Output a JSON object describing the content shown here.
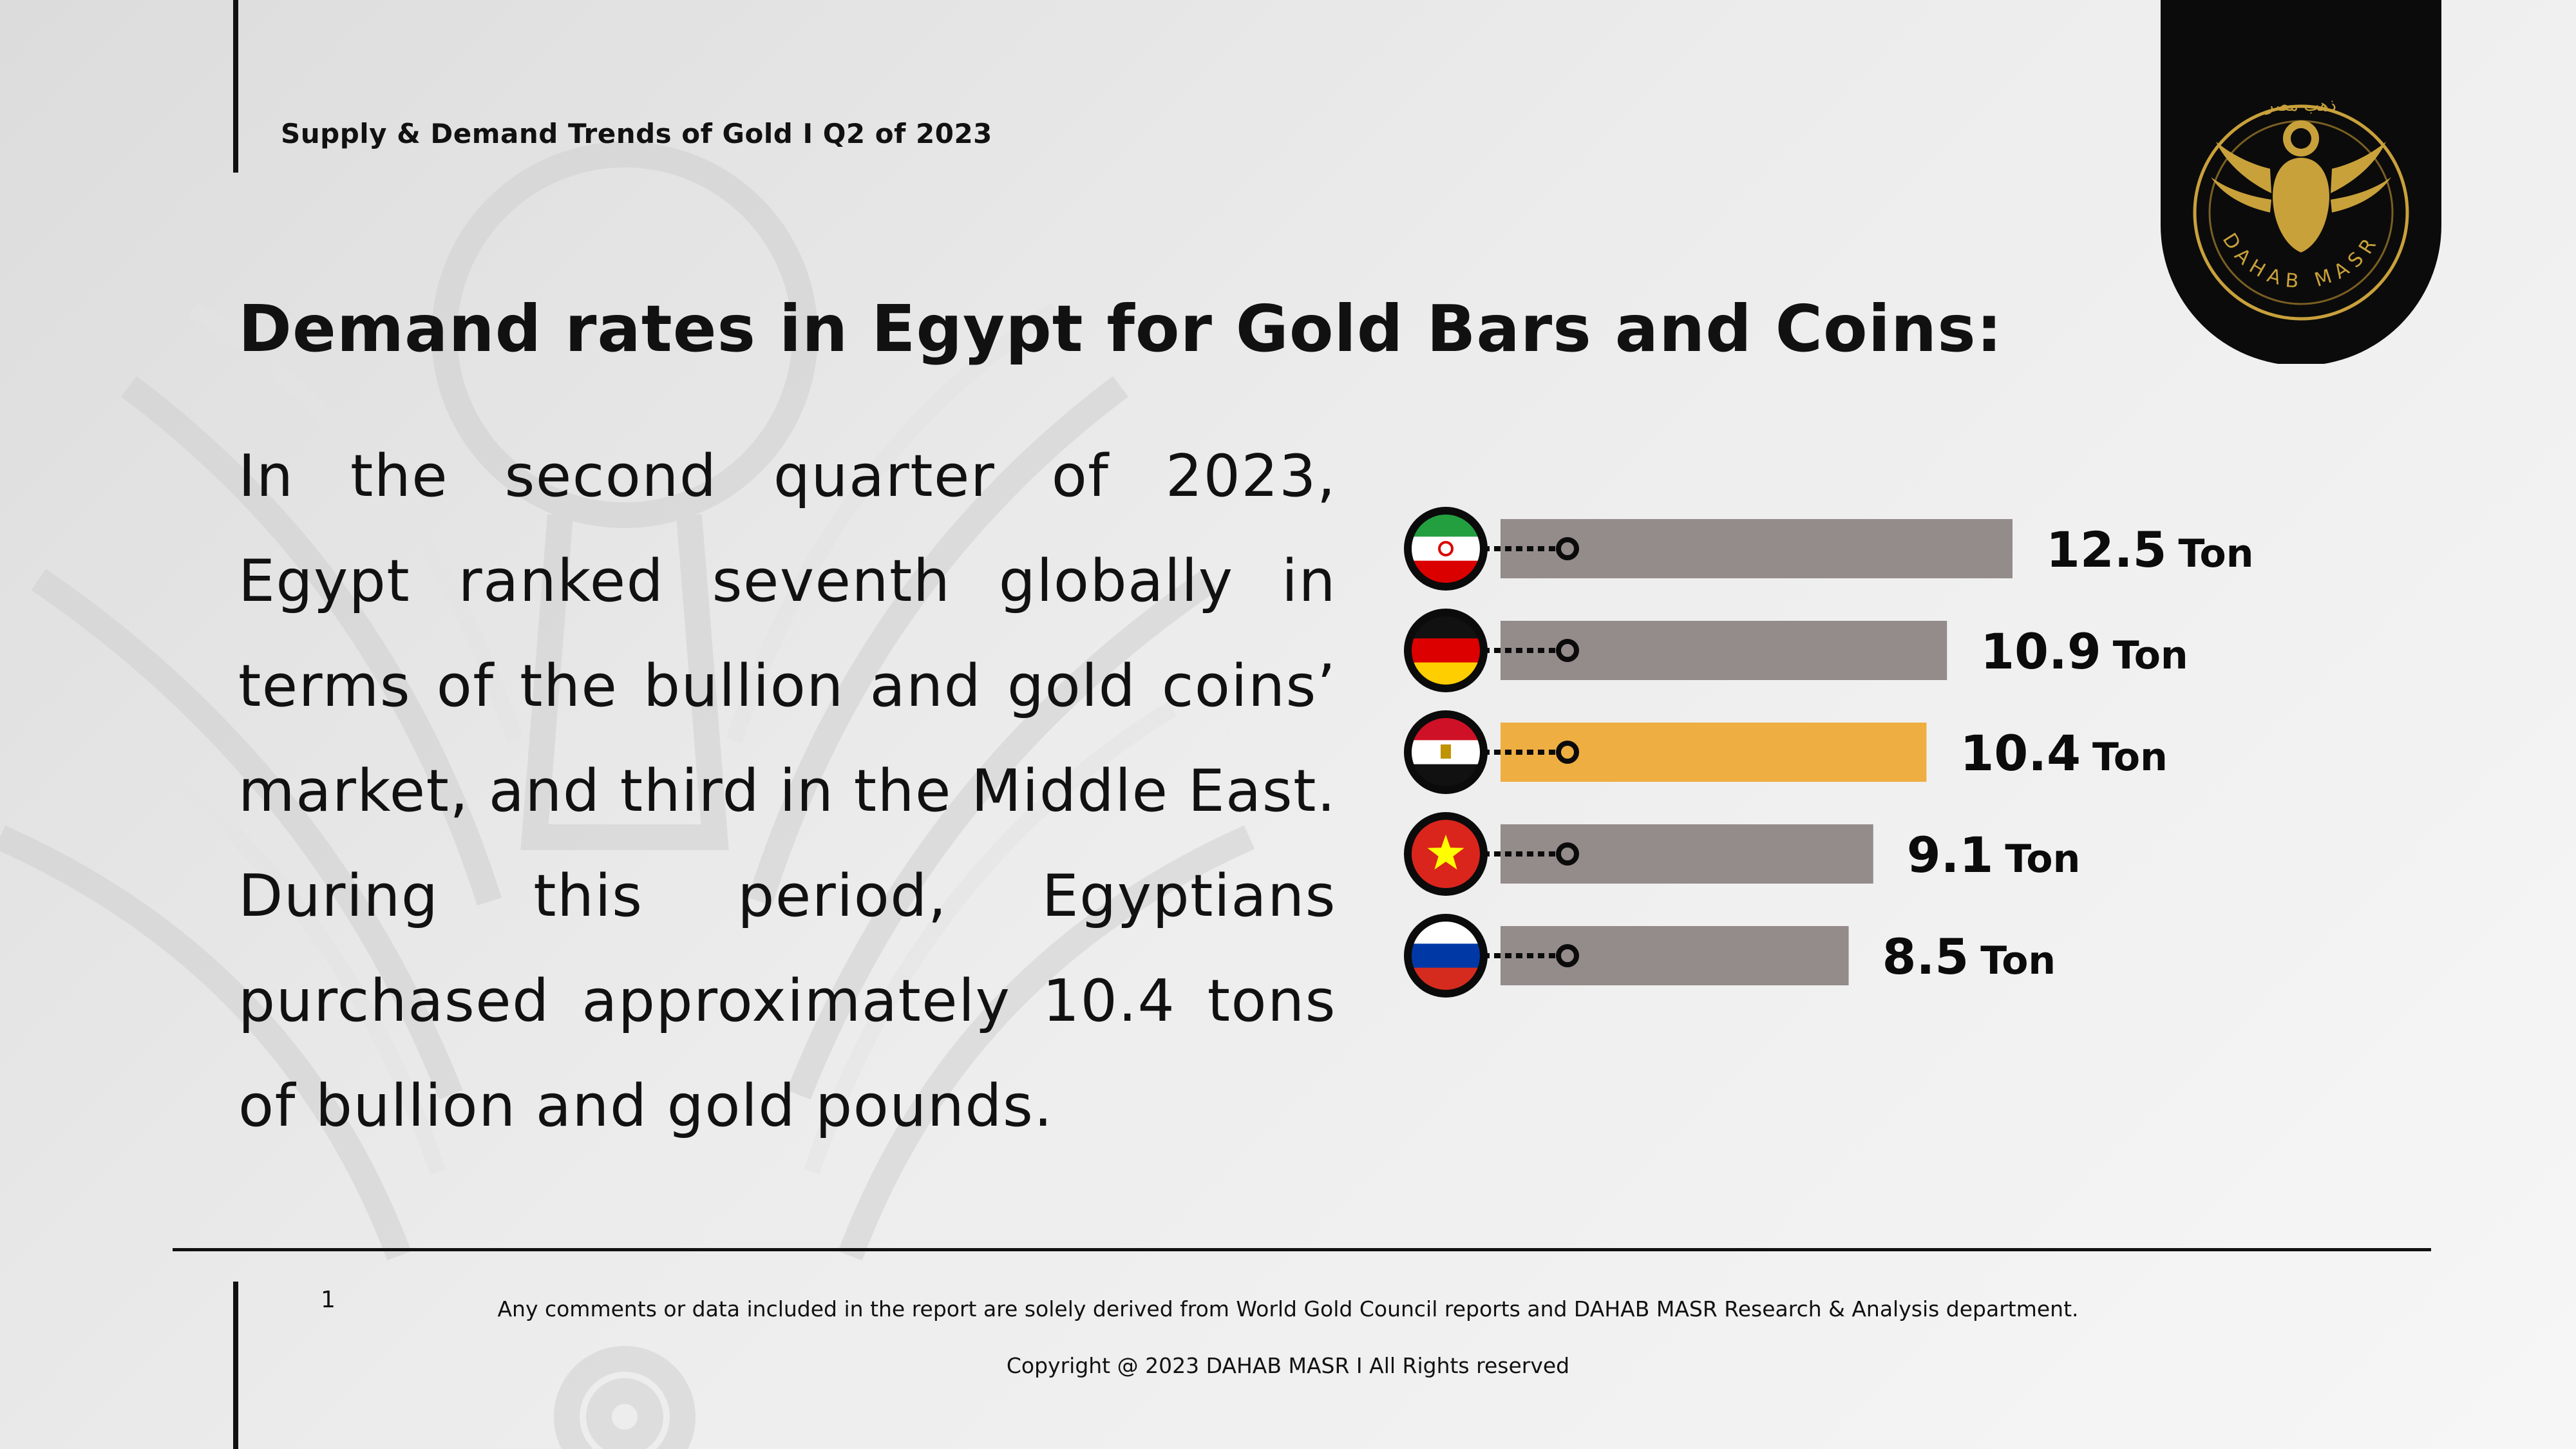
{
  "header": {
    "report_title": "Supply & Demand Trends of Gold I Q2 of 2023"
  },
  "heading": "Demand rates in Egypt for Gold Bars and Coins:",
  "body_text": "In the second quarter of 2023, Egypt ranked seventh globally in terms of the bullion and gold coins’ market, and third in the Middle East. During this period, Egyptians purchased approximately 10.4 tons of bullion and gold pounds.",
  "logo": {
    "text": "DAHAB MASR",
    "arabic_text": "ذهب مصر"
  },
  "footer": {
    "page_number": "1",
    "disclaimer": "Any comments or data included in the report are solely derived from World Gold Council reports and DAHAB MASR Research & Analysis department.",
    "copyright": "Copyright @ 2023 DAHAB MASR I All Rights reserved"
  },
  "colors": {
    "bar_default": "#948b8b",
    "bar_highlight": "#eeae42",
    "logo_gold": "#c9a13b",
    "ink": "#111111"
  },
  "chart_data": {
    "type": "bar",
    "orientation": "horizontal",
    "unit": "Ton",
    "categories": [
      "iran-flag",
      "germany-flag",
      "egypt-flag",
      "vietnam-flag",
      "russia-flag"
    ],
    "values": [
      12.5,
      10.9,
      10.4,
      9.1,
      8.5
    ],
    "value_labels": [
      "12.5",
      "10.9",
      "10.4",
      "9.1",
      "8.5"
    ],
    "highlight_index": 2,
    "title": "",
    "xlabel": "",
    "ylabel": ""
  }
}
